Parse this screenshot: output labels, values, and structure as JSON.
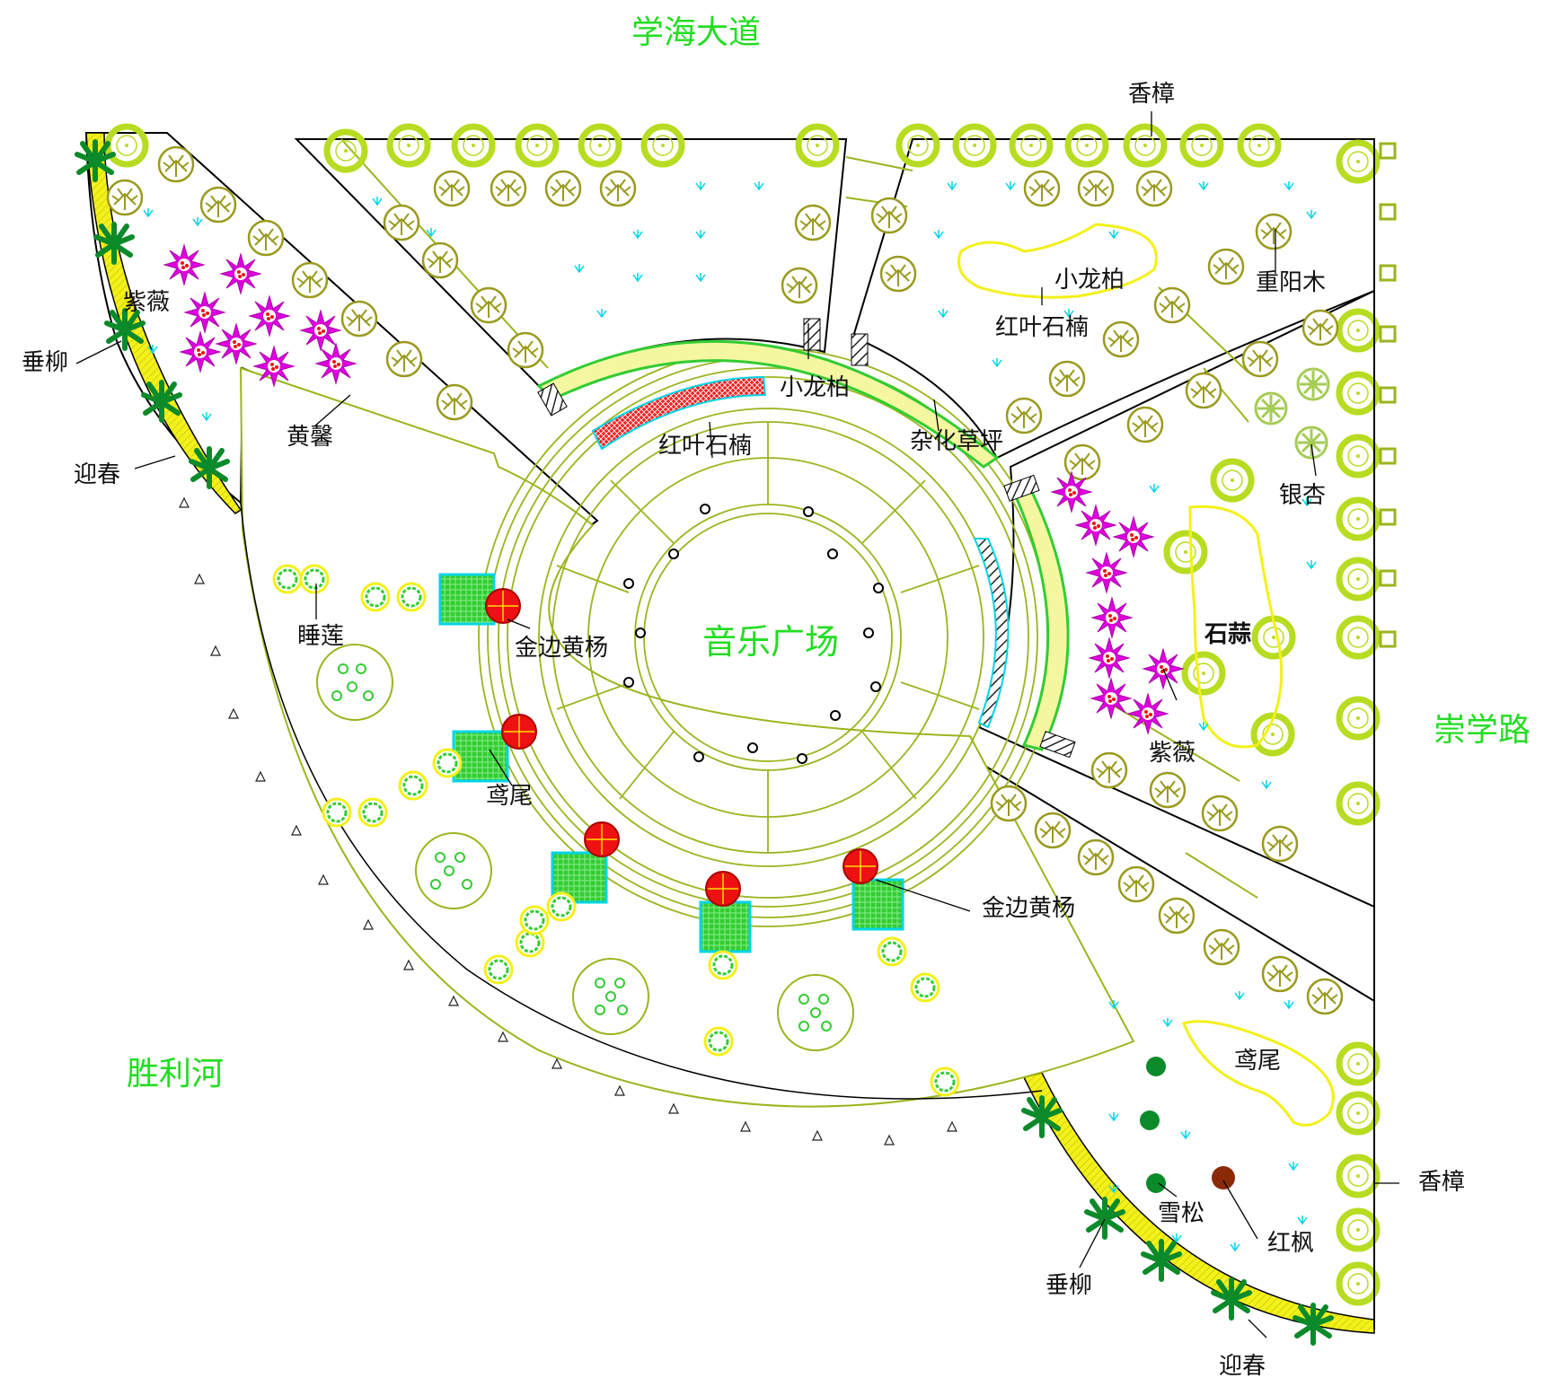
{
  "roads": {
    "north": "学海大道",
    "east": "崇学路",
    "river": "胜利河"
  },
  "center": {
    "title": "音乐广场"
  },
  "plant_labels": {
    "nw_camphor_top": "香樟",
    "crape_myrtle_nw": "紫薇",
    "weeping_willow_nw": "垂柳",
    "winter_jasmine_nw": "迎春",
    "yellow_jasmine": "黄馨",
    "water_lily": "睡莲",
    "golden_boxwood_1": "金边黄杨",
    "iris_1": "鸢尾",
    "golden_boxwood_2": "金边黄杨",
    "red_photinia_arc": "红叶石楠",
    "small_juniper_gate": "小龙柏",
    "mixed_lawn": "杂化草坪",
    "small_juniper_ne": "小龙柏",
    "red_photinia_ne": "红叶石楠",
    "bischofia": "重阳木",
    "ginkgo": "银杏",
    "lycoris": "石蒜",
    "crape_myrtle_e": "紫薇",
    "iris_2": "鸢尾",
    "camphor_se": "香樟",
    "red_maple": "红枫",
    "cedar": "雪松",
    "weeping_willow_se": "垂柳",
    "winter_jasmine_se": "迎春"
  },
  "colors": {
    "road_text": "#22dd22",
    "path_line": "#9ab51e",
    "tree_yellow_green": "#b7dc21",
    "shrub_olive": "#9a9a1f",
    "crape_myrtle": "#dd00dd",
    "palm_green": "#0b8a2a",
    "boxwood_red": "#ee1111",
    "border_yellow": "#f3f01a",
    "grass_cyan": "#00d5e5"
  }
}
